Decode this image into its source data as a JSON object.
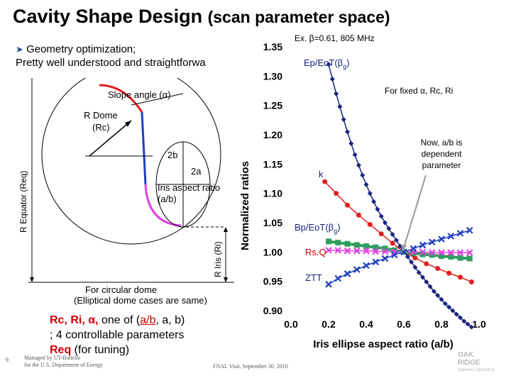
{
  "title": {
    "main": "Cavity Shape Design",
    "sub": "(scan parameter space)"
  },
  "bullet": {
    "line1": "Geometry optimization;",
    "line2": "Pretty well understood and straightforwa"
  },
  "diagram": {
    "slope_angle": "Slope angle  (α)",
    "r_dome": "R Dome",
    "rc": "(Rc)",
    "r_equator": "R Equator (Req)",
    "two_b": "2b",
    "two_a": "2a",
    "iris_aspect_1": "Iris aspect ratio",
    "iris_aspect_2": "(a/b)",
    "r_iris": "R Iris (Ri)",
    "circular_1": "For circular dome",
    "circular_2": "(Elliptical dome cases are same)"
  },
  "bottom_note": {
    "line1_a": "Rc, Ri, α,",
    "line1_b": " one of (",
    "line1_c": "a/b",
    "line1_d": ", a, b)",
    "line2": "  ; 4 controllable parameters",
    "line3_a": "Req",
    "line3_b": " (for tuning)"
  },
  "footer": {
    "page_number": "9",
    "managed_1": "Managed by UT-Battelle",
    "managed_2": "for the U.S. Department of Energy",
    "visit": "FNAL Visit, September 30, 2010",
    "logo_1": "OAK",
    "logo_2": "RIDGE",
    "logo_3": "National Laboratory"
  },
  "colors": {
    "blue": "#1f3fbf",
    "red": "#e02020",
    "green": "#2e9e60",
    "magenta": "#e040e0",
    "navy": "#1a237e"
  },
  "chart_data": {
    "type": "line",
    "title": "Ex. β=0.61, 805 MHz",
    "xlabel": "Iris ellipse aspect ratio (a/b)",
    "ylabel": "Normalized ratios",
    "xlim": [
      0.0,
      1.0
    ],
    "ylim": [
      0.9,
      1.35
    ],
    "x_ticks": [
      "0.0",
      "0.2",
      "0.4",
      "0.6",
      "0.8",
      "1.0"
    ],
    "y_ticks": [
      "0.90",
      "0.95",
      "1.00",
      "1.05",
      "1.10",
      "1.15",
      "1.20",
      "1.25",
      "1.30",
      "1.35"
    ],
    "annotations": {
      "fixed": "For fixed α, Rc, Ri",
      "dependent_1": "Now, a/b is",
      "dependent_2": "dependent",
      "dependent_3": "parameter"
    },
    "series": [
      {
        "name": "Ep/EoT(βg)",
        "label_main": "Ep/EoT(β",
        "label_sub": "g",
        "label_end": ")",
        "color": "#1a237e",
        "marker": "diamond",
        "x": [
          0.2,
          0.22,
          0.24,
          0.26,
          0.28,
          0.3,
          0.32,
          0.34,
          0.36,
          0.38,
          0.4,
          0.42,
          0.44,
          0.46,
          0.48,
          0.5,
          0.52,
          0.54,
          0.56,
          0.58,
          0.6,
          0.62,
          0.64,
          0.66,
          0.68,
          0.7,
          0.72,
          0.74,
          0.76,
          0.78,
          0.8,
          0.82,
          0.84,
          0.86,
          0.88,
          0.9,
          0.92,
          0.94,
          0.96
        ],
        "y": [
          1.32,
          1.295,
          1.27,
          1.248,
          1.226,
          1.205,
          1.185,
          1.166,
          1.148,
          1.131,
          1.115,
          1.1,
          1.086,
          1.073,
          1.061,
          1.05,
          1.04,
          1.03,
          1.02,
          1.01,
          1.0,
          0.992,
          0.983,
          0.974,
          0.965,
          0.957,
          0.949,
          0.941,
          0.933,
          0.926,
          0.919,
          0.912,
          0.906,
          0.9,
          0.894,
          0.888,
          0.882,
          0.877,
          0.872
        ]
      },
      {
        "name": "k",
        "label_main": "k",
        "color": "#e02020",
        "marker": "circle",
        "x": [
          0.18,
          0.24,
          0.3,
          0.36,
          0.42,
          0.48,
          0.54,
          0.6,
          0.66,
          0.72,
          0.78,
          0.84,
          0.9,
          0.96
        ],
        "y": [
          1.12,
          1.1,
          1.08,
          1.063,
          1.047,
          1.031,
          1.015,
          1.0,
          0.99,
          0.98,
          0.972,
          0.964,
          0.957,
          0.949
        ]
      },
      {
        "name": "Bp/EoT(βg)",
        "label_main": "Bp/EoT(β",
        "label_sub": "g",
        "label_end": ")",
        "color": "#2e9e60",
        "marker": "square",
        "x": [
          0.2,
          0.25,
          0.3,
          0.35,
          0.4,
          0.45,
          0.5,
          0.55,
          0.6,
          0.65,
          0.7,
          0.75,
          0.8,
          0.85,
          0.9,
          0.95
        ],
        "y": [
          1.018,
          1.016,
          1.014,
          1.012,
          1.01,
          1.008,
          1.006,
          1.003,
          1.0,
          0.998,
          0.996,
          0.995,
          0.993,
          0.992,
          0.99,
          0.989
        ]
      },
      {
        "name": "Rs.Q",
        "label_main": "Rs.Q",
        "color": "#e040e0",
        "marker": "x",
        "x": [
          0.2,
          0.25,
          0.3,
          0.35,
          0.4,
          0.45,
          0.5,
          0.55,
          0.6,
          0.65,
          0.7,
          0.75,
          0.8,
          0.85,
          0.9,
          0.95
        ],
        "y": [
          1.003,
          1.003,
          1.002,
          1.002,
          1.002,
          1.001,
          1.001,
          1.0,
          1.0,
          1.0,
          1.0,
          0.999,
          0.999,
          0.999,
          0.999,
          0.999
        ]
      },
      {
        "name": "ZTT",
        "label_main": "ZTT",
        "color": "#1f3fbf",
        "marker": "x",
        "x": [
          0.2,
          0.25,
          0.3,
          0.35,
          0.4,
          0.45,
          0.5,
          0.55,
          0.6,
          0.65,
          0.7,
          0.75,
          0.8,
          0.85,
          0.9,
          0.95
        ],
        "y": [
          0.945,
          0.955,
          0.963,
          0.97,
          0.977,
          0.983,
          0.989,
          0.995,
          1.0,
          1.006,
          1.012,
          1.017,
          1.022,
          1.027,
          1.032,
          1.037
        ]
      }
    ]
  }
}
